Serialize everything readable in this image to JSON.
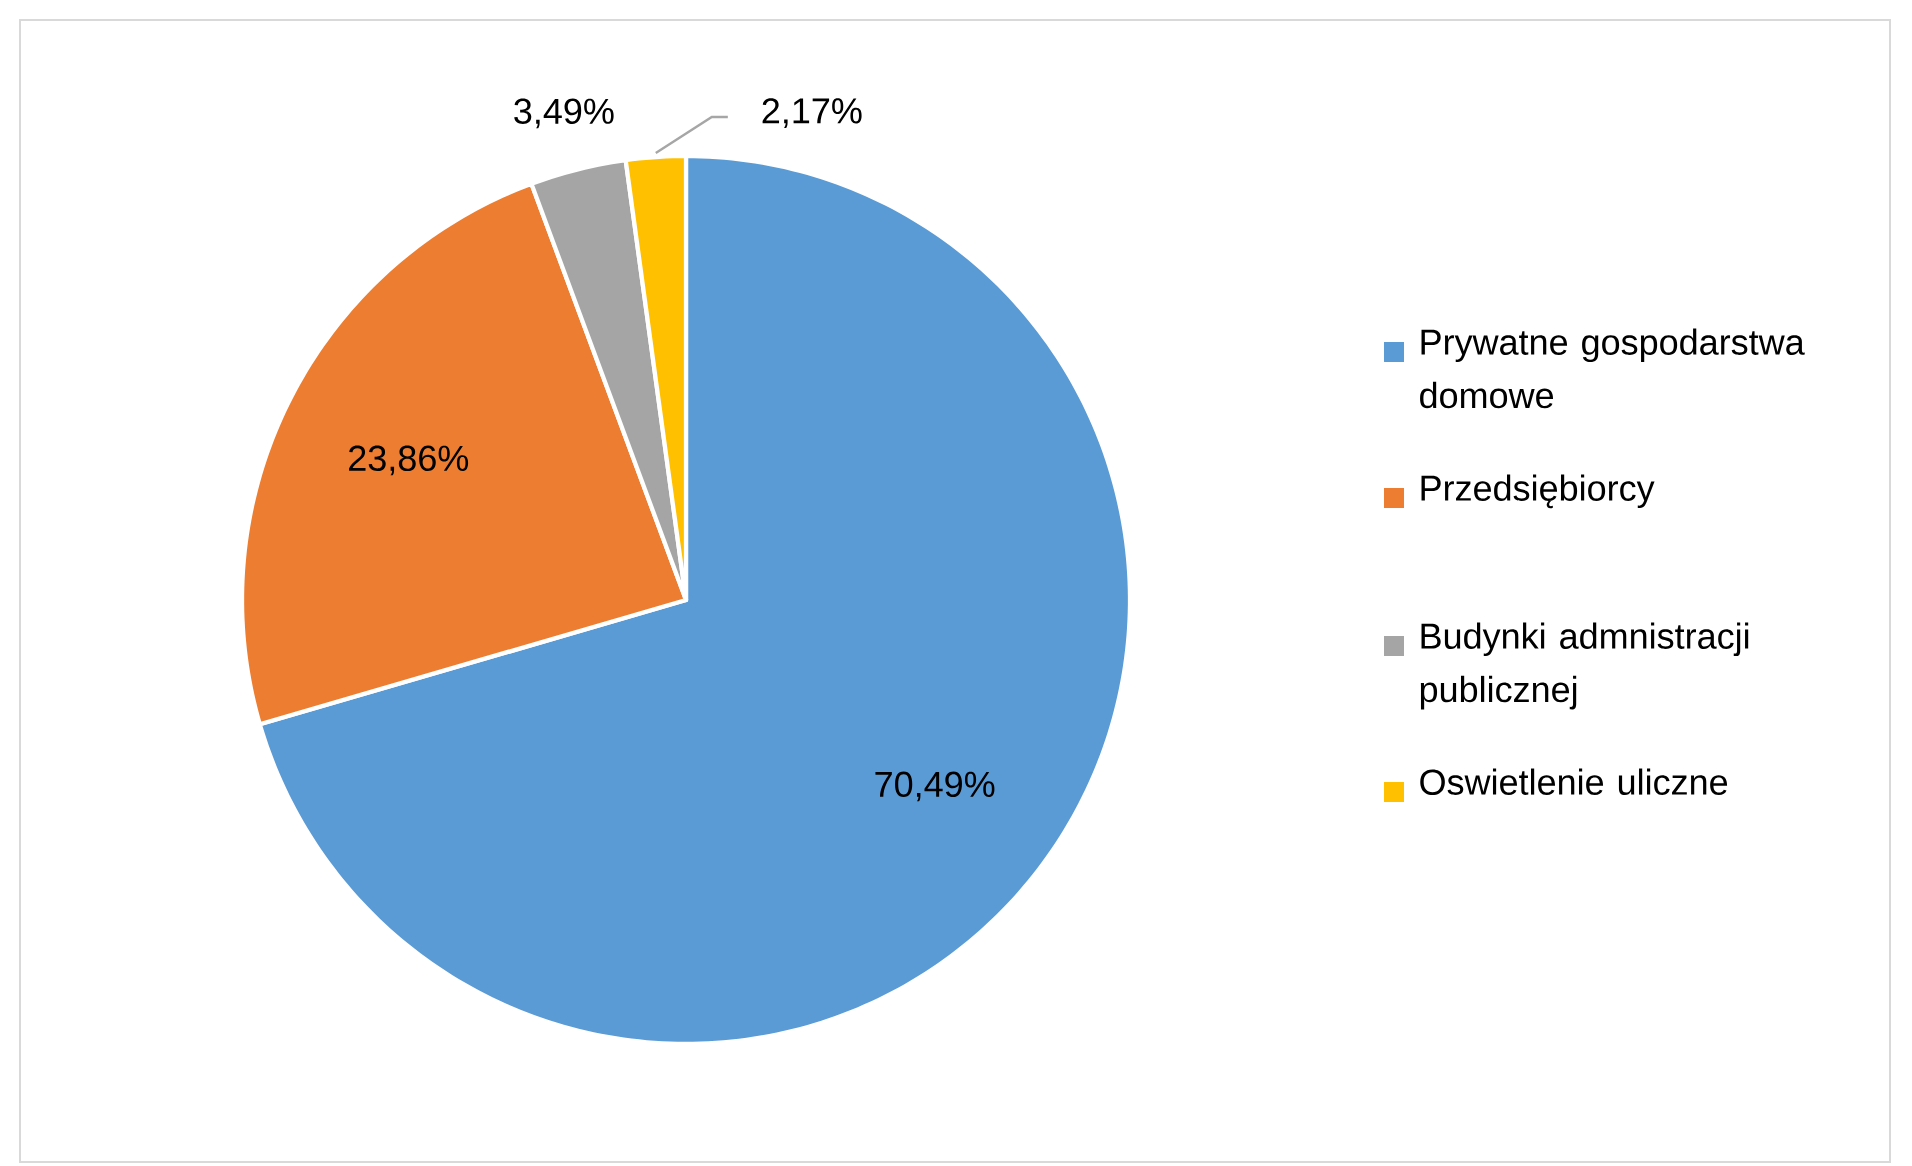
{
  "chart_data": {
    "type": "pie",
    "categories": [
      "Prywatne gospodarstwa domowe",
      "Przedsiębiorcy",
      "Budynki admnistracji publicznej",
      "Oswietlenie uliczne"
    ],
    "values": [
      70.49,
      23.86,
      3.49,
      2.17
    ],
    "value_labels": [
      "70,49%",
      "23,86%",
      "3,49%",
      "2,17%"
    ],
    "colors": [
      "#5b9bd5",
      "#ed7d31",
      "#a5a5a5",
      "#ffc000"
    ],
    "legend": "right"
  }
}
